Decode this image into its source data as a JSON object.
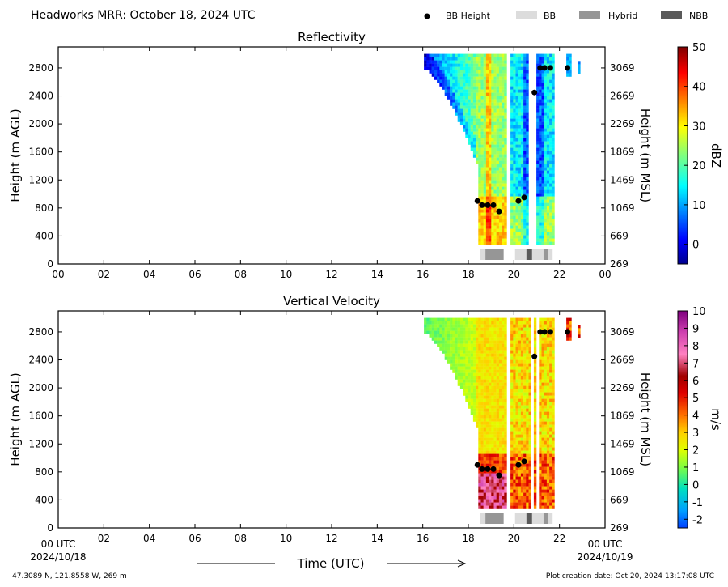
{
  "header": {
    "title": "Headworks MRR:  October 18, 2024 UTC",
    "legend": [
      {
        "label": "BB Height",
        "kind": "dot",
        "color": "#000000"
      },
      {
        "label": "BB",
        "kind": "swatch",
        "color": "#dcdcdc"
      },
      {
        "label": "Hybrid",
        "kind": "swatch",
        "color": "#969696"
      },
      {
        "label": "NBB",
        "kind": "swatch",
        "color": "#5a5a5a"
      }
    ]
  },
  "footer": {
    "location": "47.3089 N, 121.8558 W, 269 m",
    "created": "Plot creation date: Oct 20, 2024 13:17:08 UTC",
    "xlabel": "Time (UTC)",
    "start_label": "00 UTC",
    "start_date": "2024/10/18",
    "end_label": "00 UTC",
    "end_date": "2024/10/19"
  },
  "chart_data": [
    {
      "type": "heatmap",
      "title": "Reflectivity",
      "ylabel": "Height (m AGL)",
      "ylabel_right": "Height (m MSL)",
      "colorbar_label": "dBZ",
      "xlim": [
        0,
        24
      ],
      "ylim": [
        0,
        3100
      ],
      "x_ticks": [
        "00",
        "02",
        "04",
        "06",
        "08",
        "10",
        "12",
        "14",
        "16",
        "18",
        "20",
        "22",
        "00"
      ],
      "y_ticks": [
        0,
        400,
        800,
        1200,
        1600,
        2000,
        2400,
        2800
      ],
      "y_ticks_right": [
        269,
        669,
        1069,
        1469,
        1869,
        2269,
        2669,
        3069
      ],
      "colorbar": {
        "min": -5,
        "max": 50,
        "ticks": [
          0,
          10,
          20,
          30,
          40,
          50
        ],
        "scale": "jet"
      },
      "bb_height_points": [
        {
          "time": 18.4,
          "height": 900
        },
        {
          "time": 18.6,
          "height": 840
        },
        {
          "time": 18.85,
          "height": 840
        },
        {
          "time": 19.1,
          "height": 840
        },
        {
          "time": 19.35,
          "height": 750
        },
        {
          "time": 20.2,
          "height": 900
        },
        {
          "time": 20.45,
          "height": 950
        },
        {
          "time": 20.9,
          "height": 2450
        },
        {
          "time": 21.15,
          "height": 2800
        },
        {
          "time": 21.35,
          "height": 2800
        },
        {
          "time": 21.6,
          "height": 2800
        },
        {
          "time": 22.35,
          "height": 2800
        }
      ],
      "bb_classification": [
        {
          "start": 18.5,
          "end": 18.75,
          "type": "BB"
        },
        {
          "start": 18.75,
          "end": 19.55,
          "type": "Hybrid"
        },
        {
          "start": 20.05,
          "end": 20.55,
          "type": "BB"
        },
        {
          "start": 20.55,
          "end": 20.8,
          "type": "NBB"
        },
        {
          "start": 20.8,
          "end": 21.3,
          "type": "BB"
        },
        {
          "start": 21.3,
          "end": 21.5,
          "type": "Hybrid"
        },
        {
          "start": 21.5,
          "end": 21.7,
          "type": "BB"
        }
      ],
      "echo_regions": [
        {
          "start": 16.05,
          "end": 19.6,
          "top": 3000,
          "base_start": 2800,
          "base_end": 300
        },
        {
          "start": 19.85,
          "end": 21.75,
          "top": 3000,
          "base": 300
        },
        {
          "start": 22.3,
          "end": 22.45,
          "top": 3000,
          "base": 2700
        },
        {
          "start": 22.8,
          "end": 22.9,
          "top": 2900,
          "base": 2750
        }
      ]
    },
    {
      "type": "heatmap",
      "title": "Vertical Velocity",
      "ylabel": "Height (m AGL)",
      "ylabel_right": "Height (m MSL)",
      "colorbar_label": "m/s",
      "xlim": [
        0,
        24
      ],
      "ylim": [
        0,
        3100
      ],
      "x_ticks": [
        "",
        "02",
        "04",
        "06",
        "08",
        "10",
        "12",
        "14",
        "16",
        "18",
        "20",
        "22",
        ""
      ],
      "y_ticks": [
        0,
        400,
        800,
        1200,
        1600,
        2000,
        2400,
        2800
      ],
      "y_ticks_right": [
        269,
        669,
        1069,
        1469,
        1869,
        2269,
        2669,
        3069
      ],
      "colorbar": {
        "min": -2.5,
        "max": 10,
        "ticks": [
          -2,
          -1,
          0,
          1,
          2,
          3,
          4,
          5,
          6,
          7,
          8,
          9,
          10
        ],
        "scale": "velocity"
      },
      "bb_height_points": [
        {
          "time": 18.4,
          "height": 900
        },
        {
          "time": 18.6,
          "height": 840
        },
        {
          "time": 18.85,
          "height": 840
        },
        {
          "time": 19.1,
          "height": 840
        },
        {
          "time": 19.35,
          "height": 750
        },
        {
          "time": 20.2,
          "height": 900
        },
        {
          "time": 20.45,
          "height": 950
        },
        {
          "time": 20.9,
          "height": 2450
        },
        {
          "time": 21.15,
          "height": 2800
        },
        {
          "time": 21.35,
          "height": 2800
        },
        {
          "time": 21.6,
          "height": 2800
        },
        {
          "time": 22.35,
          "height": 2800
        }
      ],
      "bb_classification": [
        {
          "start": 18.5,
          "end": 18.75,
          "type": "BB"
        },
        {
          "start": 18.75,
          "end": 19.55,
          "type": "Hybrid"
        },
        {
          "start": 20.05,
          "end": 20.55,
          "type": "BB"
        },
        {
          "start": 20.55,
          "end": 20.8,
          "type": "NBB"
        },
        {
          "start": 20.8,
          "end": 21.3,
          "type": "BB"
        },
        {
          "start": 21.3,
          "end": 21.5,
          "type": "Hybrid"
        },
        {
          "start": 21.5,
          "end": 21.7,
          "type": "BB"
        }
      ]
    }
  ]
}
